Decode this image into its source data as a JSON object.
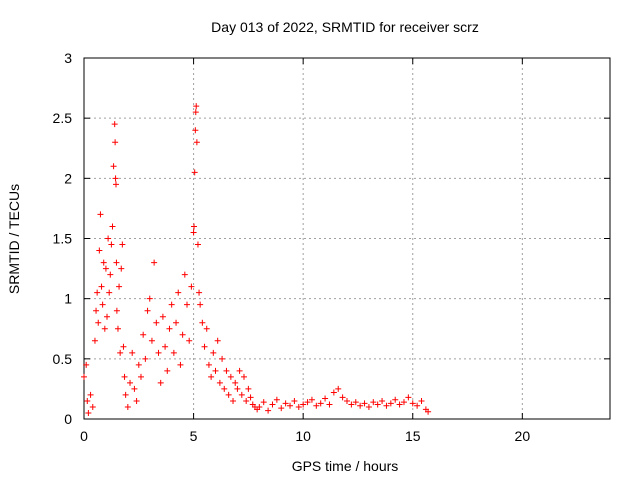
{
  "chart_data": {
    "type": "scatter",
    "title": "Day 013 of 2022, SRMTID for receiver scrz",
    "xlabel": "GPS time / hours",
    "ylabel": "SRMTID / TECUs",
    "xlim": [
      0,
      24
    ],
    "ylim": [
      0,
      3
    ],
    "xticks": [
      0,
      5,
      10,
      15,
      20
    ],
    "xtick_labels": [
      "0",
      "5",
      "10",
      "15",
      "20"
    ],
    "yticks": [
      0,
      0.5,
      1,
      1.5,
      2,
      2.5,
      3
    ],
    "ytick_labels": [
      "0",
      "0.5",
      "1",
      "1.5",
      "2",
      "2.5",
      "3"
    ],
    "grid": true,
    "marker": "+",
    "color": "#ff0000",
    "series": [
      {
        "name": "SRMTID",
        "x": [
          0.0,
          0.1,
          0.15,
          0.2,
          0.3,
          0.4,
          0.5,
          0.55,
          0.6,
          0.65,
          0.7,
          0.75,
          0.8,
          0.85,
          0.9,
          0.95,
          1.0,
          1.05,
          1.1,
          1.15,
          1.2,
          1.25,
          1.3,
          1.35,
          1.4,
          1.42,
          1.44,
          1.46,
          1.48,
          1.5,
          1.55,
          1.6,
          1.65,
          1.7,
          1.75,
          1.8,
          1.85,
          1.9,
          2.0,
          2.1,
          2.2,
          2.3,
          2.4,
          2.5,
          2.6,
          2.7,
          2.8,
          2.9,
          3.0,
          3.1,
          3.2,
          3.3,
          3.4,
          3.5,
          3.6,
          3.7,
          3.8,
          3.9,
          4.0,
          4.1,
          4.2,
          4.3,
          4.4,
          4.5,
          4.6,
          4.7,
          4.8,
          4.9,
          5.0,
          5.02,
          5.05,
          5.08,
          5.1,
          5.12,
          5.15,
          5.2,
          5.25,
          5.3,
          5.4,
          5.5,
          5.6,
          5.7,
          5.8,
          5.9,
          6.0,
          6.1,
          6.2,
          6.3,
          6.4,
          6.5,
          6.6,
          6.7,
          6.8,
          6.9,
          7.0,
          7.1,
          7.2,
          7.3,
          7.4,
          7.5,
          7.6,
          7.7,
          7.8,
          7.9,
          8.0,
          8.2,
          8.4,
          8.6,
          8.8,
          9.0,
          9.2,
          9.4,
          9.6,
          9.8,
          10.0,
          10.2,
          10.4,
          10.6,
          10.8,
          11.0,
          11.2,
          11.4,
          11.6,
          11.8,
          12.0,
          12.2,
          12.4,
          12.6,
          12.8,
          13.0,
          13.2,
          13.4,
          13.6,
          13.8,
          14.0,
          14.2,
          14.4,
          14.6,
          14.8,
          15.0,
          15.2,
          15.4,
          15.6,
          15.7
        ],
        "y": [
          0.35,
          0.45,
          0.15,
          0.05,
          0.2,
          0.1,
          0.65,
          0.9,
          1.05,
          0.8,
          1.4,
          1.7,
          1.1,
          0.95,
          1.3,
          0.75,
          1.25,
          0.85,
          1.5,
          1.05,
          1.2,
          1.45,
          1.6,
          2.1,
          2.45,
          2.3,
          2.0,
          1.95,
          1.3,
          0.9,
          0.75,
          1.1,
          0.55,
          1.25,
          1.45,
          0.6,
          0.35,
          0.2,
          0.1,
          0.3,
          0.55,
          0.25,
          0.15,
          0.45,
          0.35,
          0.7,
          0.5,
          0.9,
          1.0,
          0.65,
          1.3,
          0.8,
          0.55,
          0.3,
          0.85,
          0.6,
          0.4,
          0.75,
          0.95,
          0.55,
          0.8,
          1.05,
          0.45,
          0.7,
          1.2,
          0.95,
          0.65,
          1.1,
          1.55,
          1.6,
          2.05,
          2.4,
          2.55,
          2.6,
          2.3,
          1.45,
          1.05,
          0.95,
          0.8,
          0.6,
          0.75,
          0.45,
          0.35,
          0.55,
          0.4,
          0.65,
          0.3,
          0.5,
          0.25,
          0.4,
          0.2,
          0.35,
          0.15,
          0.3,
          0.25,
          0.4,
          0.2,
          0.35,
          0.15,
          0.25,
          0.18,
          0.12,
          0.1,
          0.08,
          0.1,
          0.14,
          0.07,
          0.12,
          0.16,
          0.09,
          0.13,
          0.11,
          0.15,
          0.1,
          0.12,
          0.14,
          0.16,
          0.11,
          0.13,
          0.17,
          0.12,
          0.22,
          0.25,
          0.18,
          0.15,
          0.12,
          0.14,
          0.11,
          0.13,
          0.1,
          0.14,
          0.12,
          0.15,
          0.11,
          0.13,
          0.16,
          0.12,
          0.14,
          0.18,
          0.13,
          0.11,
          0.15,
          0.08,
          0.06
        ]
      }
    ]
  }
}
